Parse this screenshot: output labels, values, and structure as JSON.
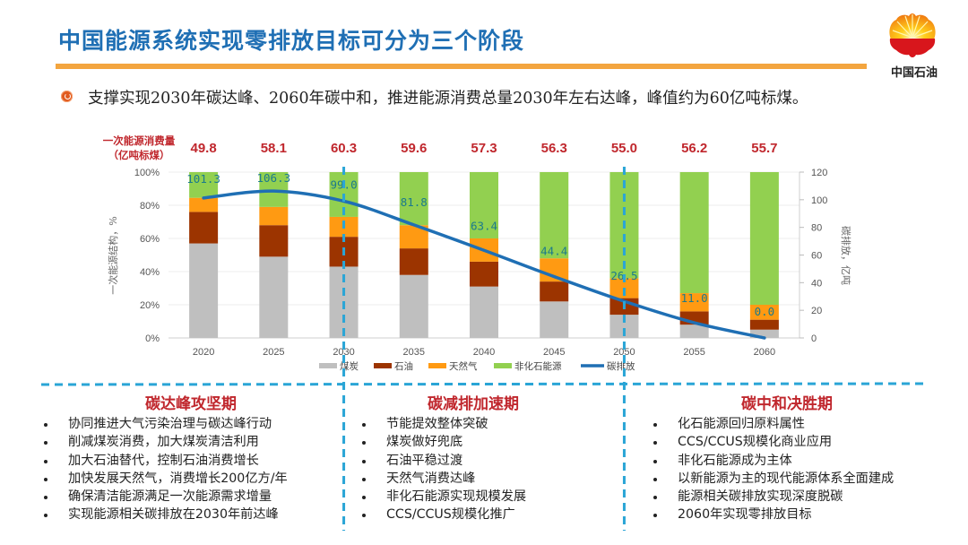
{
  "header": {
    "title": "中国能源系统实现零排放目标可分为三个阶段",
    "logo_text": "中国石油",
    "logo_icon": "petrochina-logo-icon",
    "subtitle": "支撑实现2030年碳达峰、2060年碳中和，推进能源消费总量2030年左右达峰，峰值约为60亿吨标煤。"
  },
  "colors": {
    "title": "#1f6fb4",
    "title_rule": "#f3a53f",
    "coal": "#bfbfbf",
    "oil": "#9c3400",
    "gas": "#ff9a12",
    "non_fossil": "#92d050",
    "carbon": "#1f6fb4",
    "consumption_label": "#c0272d",
    "divider": "#2aa5d6",
    "phase_title": "#c0272d"
  },
  "chart_data": {
    "type": "bar",
    "stacked": true,
    "categories": [
      "2020",
      "2025",
      "2030",
      "2035",
      "2040",
      "2045",
      "2050",
      "2055",
      "2060"
    ],
    "ylabel": "一次能源结构，%",
    "y2label": "碳排放，亿吨",
    "ylim": [
      0,
      100
    ],
    "y2lim": [
      0,
      120
    ],
    "yticks": [
      "0%",
      "20%",
      "40%",
      "60%",
      "80%",
      "100%"
    ],
    "y2ticks": [
      "0",
      "20",
      "40",
      "60",
      "80",
      "100",
      "120"
    ],
    "grid": true,
    "legend_position": "bottom",
    "series": [
      {
        "name": "煤炭",
        "key": "coal",
        "values": [
          57,
          49,
          43,
          38,
          31,
          22,
          14,
          8,
          5
        ]
      },
      {
        "name": "石油",
        "key": "oil",
        "values": [
          19,
          19,
          18,
          16,
          15,
          12,
          10,
          8,
          6
        ]
      },
      {
        "name": "天然气",
        "key": "gas",
        "values": [
          8.5,
          11,
          12,
          14,
          14,
          14,
          12,
          11,
          9
        ]
      },
      {
        "name": "非化石能源",
        "key": "non_fossil",
        "values": [
          15.5,
          21,
          27,
          32,
          40,
          52,
          64,
          73,
          80
        ]
      }
    ],
    "line_series": {
      "name": "碳排放",
      "axis": "right",
      "values": [
        101.3,
        106.3,
        99.0,
        81.8,
        63.4,
        44.4,
        26.5,
        11.0,
        0.0
      ],
      "labels": [
        "101.3",
        "106.3",
        "99.0",
        "81.8",
        "63.4",
        "44.4",
        "26.5",
        "11.0",
        "0.0"
      ]
    },
    "consumption": {
      "label_line1": "一次能源消费量",
      "label_line2": "（亿吨标煤）",
      "values": [
        "49.8",
        "58.1",
        "60.3",
        "59.6",
        "57.3",
        "56.3",
        "55.0",
        "56.2",
        "55.7"
      ]
    },
    "phase_markers": [
      "2030",
      "2050"
    ]
  },
  "phases": [
    {
      "title": "碳达峰攻坚期",
      "items": [
        "协同推进大气污染治理与碳达峰行动",
        "削减煤炭消费，加大煤炭清洁利用",
        "加大石油替代，控制石油消费增长",
        "加快发展天然气，消费增长200亿方/年",
        "确保清洁能源满足一次能源需求增量",
        "实现能源相关碳排放在2030年前达峰"
      ]
    },
    {
      "title": "碳减排加速期",
      "items": [
        "节能提效整体突破",
        "煤炭做好兜底",
        "石油平稳过渡",
        "天然气消费达峰",
        "非化石能源实现规模发展",
        "CCS/CCUS规模化推广"
      ]
    },
    {
      "title": "碳中和决胜期",
      "items": [
        "化石能源回归原料属性",
        "CCS/CCUS规模化商业应用",
        "非化石能源成为主体",
        "以新能源为主的现代能源体系全面建成",
        "能源相关碳排放实现深度脱碳",
        "2060年实现零排放目标"
      ]
    }
  ]
}
